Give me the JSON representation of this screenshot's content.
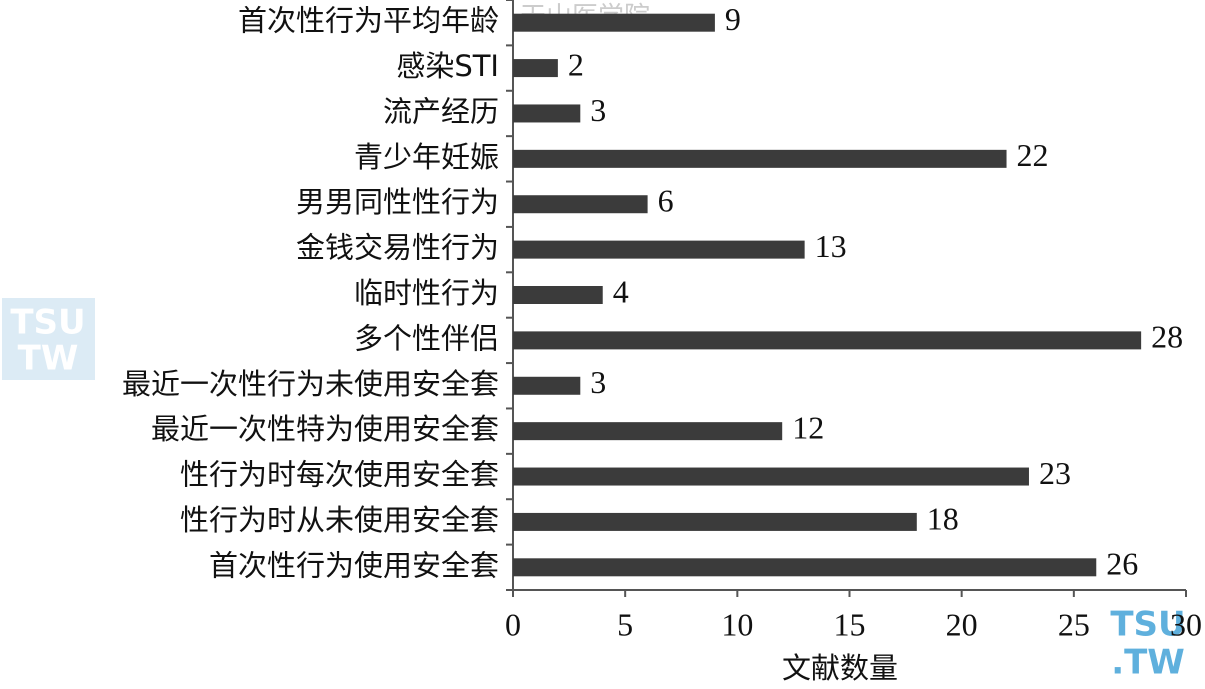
{
  "chart_data": {
    "type": "barh",
    "x_label": "文献数量",
    "categories": [
      "首次性行为平均年龄",
      "感染STI",
      "流产经历",
      "青少年妊娠",
      "男男同性性行为",
      "金钱交易性行为",
      "临时性行为",
      "多个性伴侣",
      "最近一次性行为未使用安全套",
      "最近一次性特为使用安全套",
      "性行为时每次使用安全套",
      "性行为时从未使用安全套",
      "首次性行为使用安全套"
    ],
    "values": [
      9,
      2,
      3,
      22,
      6,
      13,
      4,
      28,
      3,
      12,
      23,
      18,
      26
    ],
    "color": "#3b3b3b",
    "xlim": [
      0,
      30
    ],
    "xticks": [
      0,
      5,
      10,
      15,
      20,
      25,
      30
    ],
    "watermarks": [
      "天山医学院",
      "TSU",
      "TW",
      "TSU",
      ".TW"
    ]
  }
}
